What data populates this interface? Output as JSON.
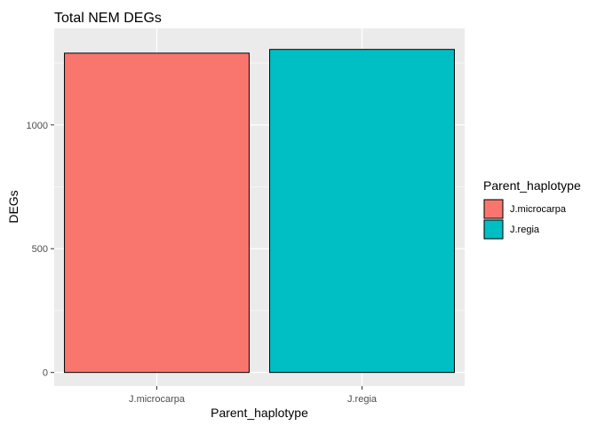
{
  "chart_data": {
    "type": "bar",
    "title": "Total NEM DEGs",
    "xlabel": "Parent_haplotype",
    "ylabel": "DEGs",
    "categories": [
      "J.microcarpa",
      "J.regia"
    ],
    "values": [
      1290,
      1305
    ],
    "colors": [
      "#F8766D",
      "#00BFC4"
    ],
    "ylim": [
      -55,
      1390
    ],
    "yticks": [
      0,
      500,
      1000
    ],
    "ytick_labels": [
      "0",
      "500",
      "1000"
    ],
    "grid": true,
    "legend": {
      "title": "Parent_haplotype",
      "position": "right",
      "entries": [
        "J.microcarpa",
        "J.regia"
      ]
    }
  }
}
